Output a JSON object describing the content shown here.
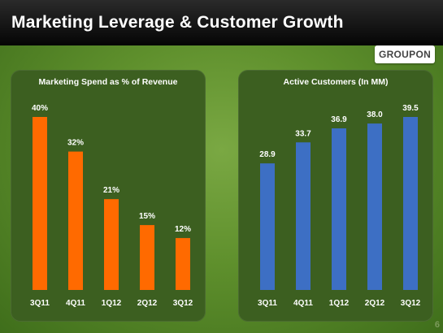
{
  "slide": {
    "title": "Marketing Leverage & Customer Growth",
    "logo_text": "GROUPON",
    "page_number": "6"
  },
  "chart_data": [
    {
      "type": "bar",
      "title": "Marketing Spend as % of Revenue",
      "categories": [
        "3Q11",
        "4Q11",
        "1Q12",
        "2Q12",
        "3Q12"
      ],
      "values": [
        40,
        32,
        21,
        15,
        12
      ],
      "labels": [
        "40%",
        "32%",
        "21%",
        "15%",
        "12%"
      ],
      "ylim": [
        0,
        40
      ],
      "xlabel": "",
      "ylabel": "",
      "color": "#ff6a00",
      "grid": false
    },
    {
      "type": "bar",
      "title": "Active Customers (In MM)",
      "categories": [
        "3Q11",
        "4Q11",
        "1Q12",
        "2Q12",
        "3Q12"
      ],
      "values": [
        28.9,
        33.7,
        36.9,
        38.0,
        39.5
      ],
      "labels": [
        "28.9",
        "33.7",
        "36.9",
        "38.0",
        "39.5"
      ],
      "ylim": [
        0,
        39.5
      ],
      "xlabel": "",
      "ylabel": "",
      "color": "#3d6fc4",
      "grid": false
    }
  ]
}
